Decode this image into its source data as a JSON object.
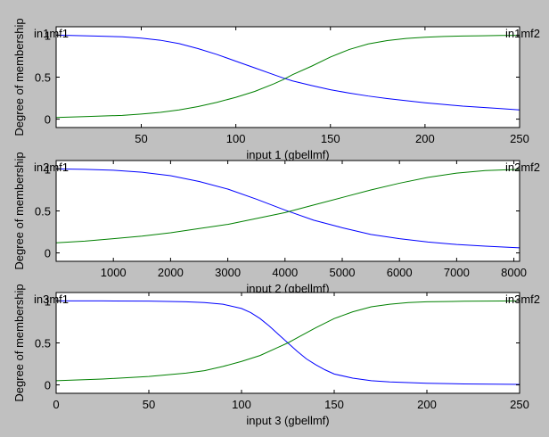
{
  "figure": {
    "background": "#c0c0c0",
    "axes_background": "#ffffff",
    "axes_color": "#000000"
  },
  "chart_data": [
    {
      "type": "line",
      "title": "",
      "xlabel": "input 1 (gbellmf)",
      "ylabel": "Degree of membership",
      "xlim": [
        5,
        250
      ],
      "ylim": [
        -0.1,
        1.1
      ],
      "xticks": [
        50,
        100,
        150,
        200,
        250
      ],
      "yticks": [
        0,
        0.5,
        1
      ],
      "grid": false,
      "mf_labels": [
        {
          "text": "in1mf1",
          "anchor": "top-left"
        },
        {
          "text": "in1mf2",
          "anchor": "top-right"
        }
      ],
      "series": [
        {
          "color": "#0000ff",
          "x": [
            5,
            25,
            40,
            50,
            60,
            70,
            80,
            90,
            100,
            110,
            120,
            125,
            130,
            140,
            150,
            160,
            170,
            180,
            190,
            200,
            210,
            220,
            230,
            240,
            250
          ],
          "values": [
            1.0,
            0.99,
            0.98,
            0.965,
            0.94,
            0.9,
            0.84,
            0.77,
            0.69,
            0.61,
            0.53,
            0.49,
            0.455,
            0.4,
            0.35,
            0.31,
            0.275,
            0.245,
            0.22,
            0.195,
            0.175,
            0.155,
            0.14,
            0.125,
            0.11
          ]
        },
        {
          "color": "#008000",
          "x": [
            5,
            20,
            40,
            50,
            60,
            70,
            80,
            90,
            100,
            110,
            120,
            125,
            130,
            140,
            150,
            160,
            170,
            180,
            190,
            200,
            210,
            220,
            230,
            240,
            250
          ],
          "values": [
            0.02,
            0.03,
            0.045,
            0.06,
            0.08,
            0.11,
            0.15,
            0.2,
            0.26,
            0.33,
            0.42,
            0.47,
            0.53,
            0.63,
            0.74,
            0.83,
            0.895,
            0.935,
            0.96,
            0.975,
            0.985,
            0.99,
            0.993,
            0.996,
            0.998
          ]
        }
      ]
    },
    {
      "type": "line",
      "title": "",
      "xlabel": "input 2 (gbellmf)",
      "ylabel": "Degree of membership",
      "xlim": [
        0,
        8100
      ],
      "ylim": [
        -0.1,
        1.1
      ],
      "xticks": [
        1000,
        2000,
        3000,
        4000,
        5000,
        6000,
        7000,
        8000
      ],
      "yticks": [
        0,
        0.5,
        1
      ],
      "grid": false,
      "mf_labels": [
        {
          "text": "in2mf1",
          "anchor": "top-left"
        },
        {
          "text": "in2mf2",
          "anchor": "top-right"
        }
      ],
      "series": [
        {
          "color": "#0000ff",
          "x": [
            0,
            500,
            1000,
            1500,
            2000,
            2500,
            3000,
            3500,
            4000,
            4500,
            5000,
            5500,
            6000,
            6500,
            7000,
            7500,
            8100
          ],
          "values": [
            1.0,
            0.995,
            0.985,
            0.96,
            0.92,
            0.85,
            0.76,
            0.64,
            0.51,
            0.39,
            0.3,
            0.22,
            0.17,
            0.13,
            0.1,
            0.08,
            0.06
          ]
        },
        {
          "color": "#008000",
          "x": [
            0,
            500,
            1000,
            1500,
            2000,
            2500,
            3000,
            3500,
            4000,
            4500,
            5000,
            5500,
            6000,
            6500,
            7000,
            7500,
            8100
          ],
          "values": [
            0.12,
            0.14,
            0.17,
            0.2,
            0.24,
            0.29,
            0.34,
            0.41,
            0.48,
            0.57,
            0.66,
            0.75,
            0.83,
            0.9,
            0.95,
            0.98,
            0.995
          ]
        }
      ]
    },
    {
      "type": "line",
      "title": "",
      "xlabel": "input 3 (gbellmf)",
      "ylabel": "Degree of membership",
      "xlim": [
        0,
        250
      ],
      "ylim": [
        -0.1,
        1.1
      ],
      "xticks": [
        0,
        50,
        100,
        150,
        200,
        250
      ],
      "yticks": [
        0,
        0.5,
        1
      ],
      "grid": false,
      "mf_labels": [
        {
          "text": "in3mf1",
          "anchor": "top-left"
        },
        {
          "text": "in3mf2",
          "anchor": "top-right"
        }
      ],
      "series": [
        {
          "color": "#0000ff",
          "x": [
            0,
            25,
            50,
            70,
            80,
            90,
            100,
            105,
            110,
            115,
            120,
            125,
            130,
            135,
            140,
            145,
            150,
            160,
            170,
            180,
            200,
            220,
            250
          ],
          "values": [
            1.0,
            1.0,
            0.998,
            0.99,
            0.98,
            0.96,
            0.91,
            0.86,
            0.79,
            0.7,
            0.6,
            0.5,
            0.4,
            0.31,
            0.24,
            0.18,
            0.13,
            0.08,
            0.05,
            0.035,
            0.02,
            0.012,
            0.006
          ]
        },
        {
          "color": "#008000",
          "x": [
            0,
            25,
            50,
            70,
            80,
            90,
            100,
            110,
            120,
            125,
            130,
            140,
            150,
            160,
            170,
            180,
            190,
            200,
            220,
            250
          ],
          "values": [
            0.05,
            0.07,
            0.1,
            0.14,
            0.17,
            0.22,
            0.28,
            0.35,
            0.45,
            0.5,
            0.56,
            0.68,
            0.79,
            0.87,
            0.93,
            0.96,
            0.98,
            0.99,
            0.996,
            1.0
          ]
        }
      ]
    }
  ]
}
